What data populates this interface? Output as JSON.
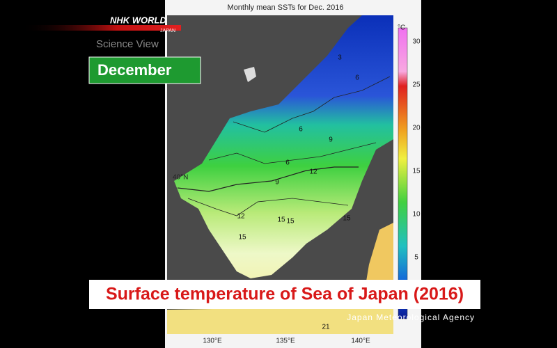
{
  "broadcast": {
    "logo": "NHK WORLD",
    "logo_sub": "JAPAN",
    "program": "Science View",
    "label": "December",
    "caption": "Surface temperature of Sea of Japan (2016)",
    "credit": "Japan Meteorological Agency"
  },
  "map": {
    "title": "Monthly mean SSTs for Dec. 2016",
    "colorbar": {
      "unit": "°C",
      "ticks": [
        5,
        10,
        15,
        20,
        25,
        30
      ]
    },
    "latitude_labels": [
      "40°N"
    ],
    "longitude_labels": [
      "130°E",
      "135°E",
      "140°E"
    ],
    "contour_labels": [
      3,
      6,
      6,
      9,
      6,
      12,
      9,
      12,
      15,
      15,
      15,
      15,
      21
    ]
  }
}
